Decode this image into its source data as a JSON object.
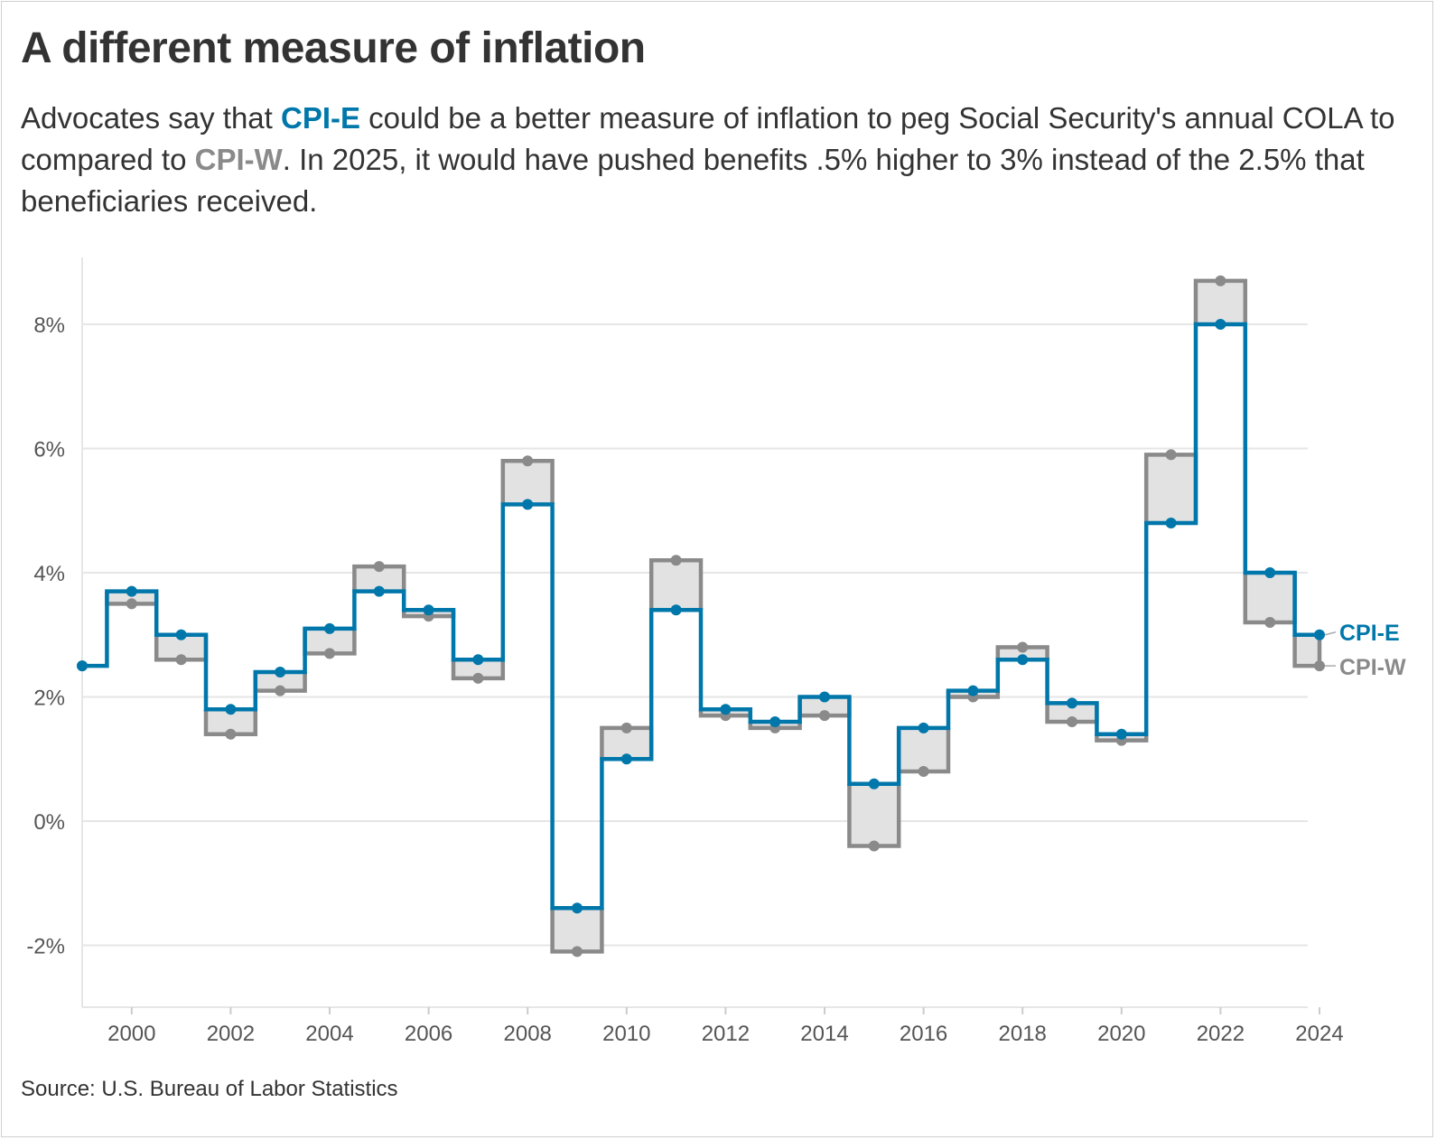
{
  "header": {
    "title": "A different measure of inflation",
    "subtitle_1": "Advocates say that ",
    "subtitle_cpie": "CPI-E",
    "subtitle_2": " could be a better measure of inflation to peg Social Security's annual COLA to compared to ",
    "subtitle_cpiw": "CPI-W",
    "subtitle_3": ". In 2025, it would have pushed benefits .5% higher to 3% instead of the 2.5% that beneficiaries received."
  },
  "footer": {
    "source": "Source: U.S. Bureau of Labor Statistics"
  },
  "colors": {
    "cpi_e": "#0077aa",
    "cpi_w": "#8a8a8a",
    "band_fill": "#e2e2e2",
    "grid": "#e6e6e6"
  },
  "chart_data": {
    "type": "line",
    "step": true,
    "x": [
      1999,
      2000,
      2001,
      2002,
      2003,
      2004,
      2005,
      2006,
      2007,
      2008,
      2009,
      2010,
      2011,
      2012,
      2013,
      2014,
      2015,
      2016,
      2017,
      2018,
      2019,
      2020,
      2021,
      2022,
      2023,
      2024
    ],
    "series": [
      {
        "name": "CPI-E",
        "values": [
          2.5,
          3.7,
          3.0,
          1.8,
          2.4,
          3.1,
          3.7,
          3.4,
          2.6,
          5.1,
          -1.4,
          1.0,
          3.4,
          1.8,
          1.6,
          2.0,
          0.6,
          1.5,
          2.1,
          2.6,
          1.9,
          1.4,
          4.8,
          8.0,
          4.0,
          3.0
        ]
      },
      {
        "name": "CPI-W",
        "values": [
          2.5,
          3.5,
          2.6,
          1.4,
          2.1,
          2.7,
          4.1,
          3.3,
          2.3,
          5.8,
          -2.1,
          1.5,
          4.2,
          1.7,
          1.5,
          1.7,
          -0.4,
          0.8,
          2.0,
          2.8,
          1.6,
          1.3,
          5.9,
          8.7,
          3.2,
          2.5
        ]
      }
    ],
    "xticks": [
      2000,
      2002,
      2004,
      2006,
      2008,
      2010,
      2012,
      2014,
      2016,
      2018,
      2020,
      2022,
      2024
    ],
    "yticks": [
      -2,
      0,
      2,
      4,
      6,
      8
    ],
    "ytick_labels": [
      "-2%",
      "0%",
      "2%",
      "4%",
      "6%",
      "8%"
    ],
    "xlim": [
      1999,
      2024
    ],
    "ylim": [
      -3.0,
      9.0
    ],
    "grid": "horizontal",
    "legend": "direct labels at right end of lines"
  }
}
